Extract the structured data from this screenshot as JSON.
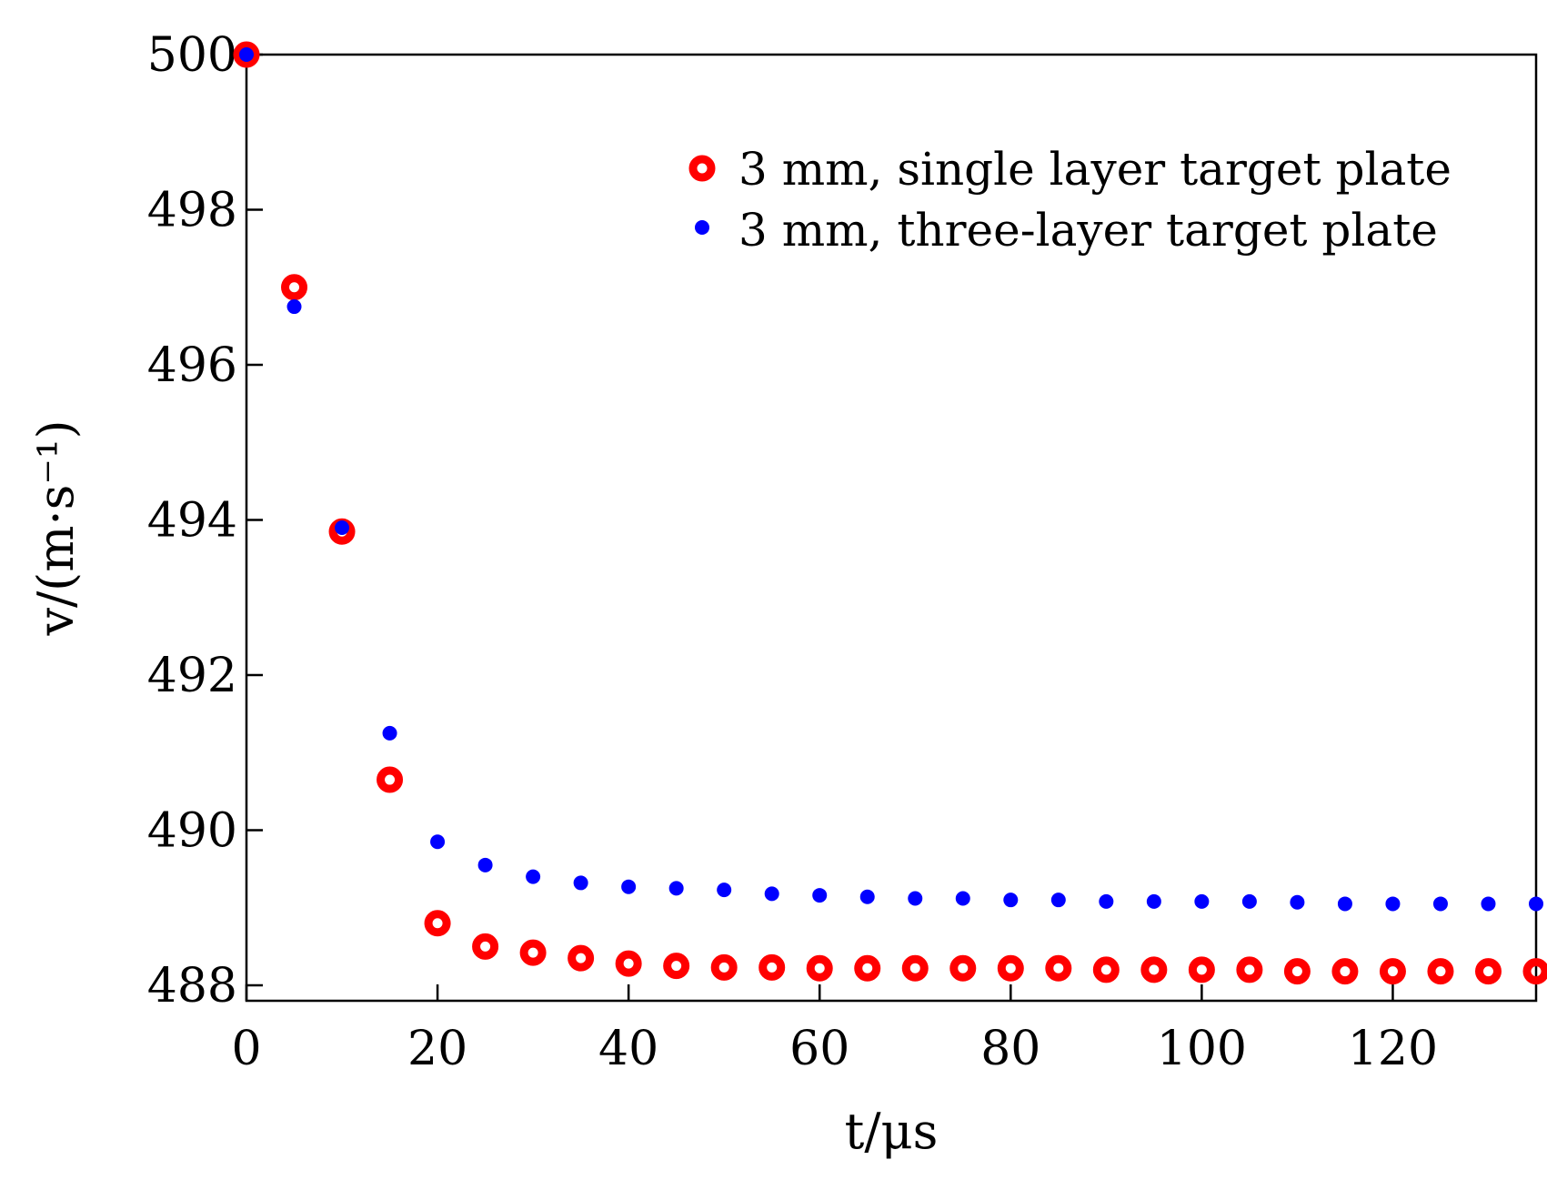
{
  "chart_data": {
    "type": "scatter",
    "xlabel": "t/μs",
    "ylabel": "v/(m·s⁻¹)",
    "xlim": [
      0,
      135
    ],
    "ylim": [
      487.8,
      500
    ],
    "xticks": [
      0,
      20,
      40,
      60,
      80,
      100,
      120
    ],
    "yticks": [
      488,
      490,
      492,
      494,
      496,
      498,
      500
    ],
    "grid": false,
    "legend_position": "top-right",
    "series": [
      {
        "name": "3 mm, single layer target plate",
        "color": "#ff0000",
        "marker": "ring",
        "x": [
          0,
          5,
          10,
          15,
          20,
          25,
          30,
          35,
          40,
          45,
          50,
          55,
          60,
          65,
          70,
          75,
          80,
          85,
          90,
          95,
          100,
          105,
          110,
          115,
          120,
          125,
          130,
          135
        ],
        "y": [
          500,
          497,
          493.85,
          490.65,
          488.8,
          488.5,
          488.42,
          488.35,
          488.28,
          488.25,
          488.23,
          488.23,
          488.22,
          488.22,
          488.22,
          488.22,
          488.22,
          488.22,
          488.2,
          488.2,
          488.2,
          488.2,
          488.18,
          488.18,
          488.18,
          488.18,
          488.18,
          488.18
        ]
      },
      {
        "name": "3 mm, three-layer target plate",
        "color": "#0000ff",
        "marker": "dot",
        "x": [
          0,
          5,
          10,
          15,
          20,
          25,
          30,
          35,
          40,
          45,
          50,
          55,
          60,
          65,
          70,
          75,
          80,
          85,
          90,
          95,
          100,
          105,
          110,
          115,
          120,
          125,
          130,
          135
        ],
        "y": [
          500,
          496.75,
          493.9,
          491.25,
          489.85,
          489.55,
          489.4,
          489.32,
          489.27,
          489.25,
          489.23,
          489.18,
          489.16,
          489.14,
          489.12,
          489.12,
          489.1,
          489.1,
          489.08,
          489.08,
          489.08,
          489.08,
          489.07,
          489.05,
          489.05,
          489.05,
          489.05,
          489.05
        ]
      }
    ]
  }
}
